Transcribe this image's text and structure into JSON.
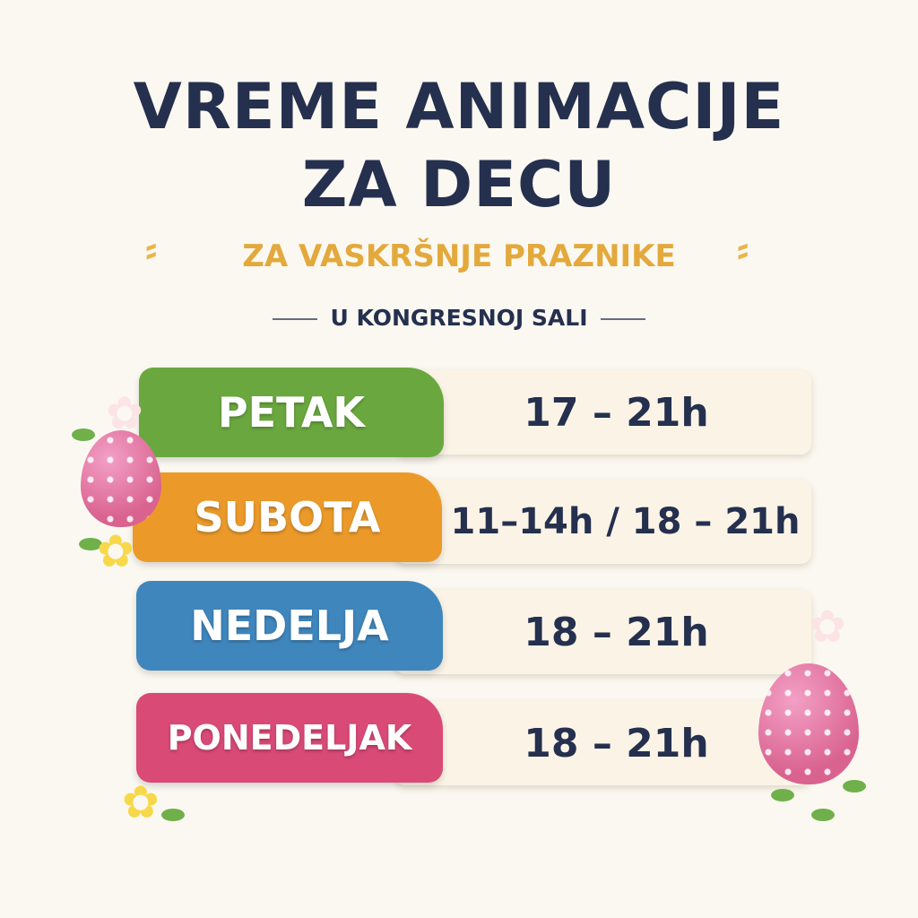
{
  "title_line1": "VREME ANIMACIJE",
  "title_line2": "ZA DECU",
  "subtitle": "ZA VASKRŠNJE PRAZNIKE",
  "location": "U KONGRESNOJ SALI",
  "schedule": [
    {
      "day": "PETAK",
      "time": "17 – 21h",
      "color": "#6aa83f"
    },
    {
      "day": "SUBOTA",
      "time": "11–14h / 18 – 21h",
      "color": "#eb9a2a"
    },
    {
      "day": "NEDELJA",
      "time": "18 – 21h",
      "color": "#3f86bd"
    },
    {
      "day": "PONEDELJAK",
      "time": "18 – 21h",
      "color": "#d94a77"
    }
  ],
  "colors": {
    "title": "#25304f",
    "subtitle": "#e3a93c",
    "background": "#fbf8f1"
  }
}
